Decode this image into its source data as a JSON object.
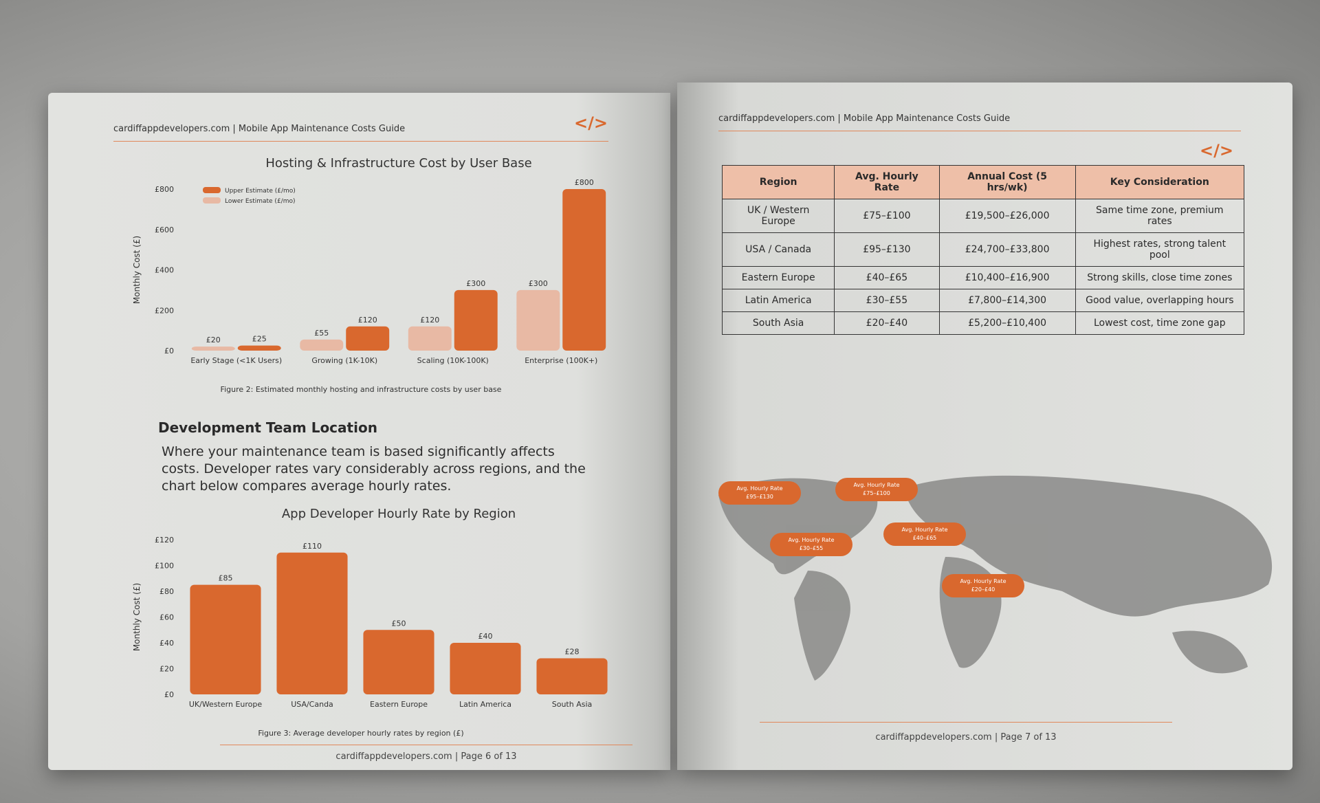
{
  "left_page": {
    "header": "cardiffappdevelopers.com | Mobile App Maintenance Costs Guide",
    "logo": "</>",
    "caption_1": "Figure 2: Estimated monthly hosting and infrastructure costs by user base",
    "heading": "Development Team Location",
    "paragraph": "Where your maintenance team is based significantly affects costs. Developer rates vary considerably across regions, and the chart below compares average hourly rates.",
    "caption_2": "Figure 3: Average developer hourly rates by region (£)",
    "footer": "cardiffappdevelopers.com | Page 6 of 13"
  },
  "chart_data": [
    {
      "type": "bar",
      "title": "Hosting & Infrastructure Cost by User Base",
      "y_label": "Monthly Cost (£)",
      "categories": [
        "Early Stage (<1K Users)",
        "Growing (1K-10K)",
        "Scaling (10K-100K)",
        "Enterprise (100K+)"
      ],
      "series": [
        {
          "name": "Lower Estimate (£/mo)",
          "color": "#e8b9a4",
          "values": [
            20,
            55,
            120,
            300
          ],
          "value_labels": [
            "£20",
            "£55",
            "£120",
            "£300"
          ]
        },
        {
          "name": "Upper Estimate (£/mo)",
          "color": "#d9682e",
          "values": [
            25,
            120,
            300,
            800
          ],
          "value_labels": [
            "£25",
            "£120",
            "£300",
            "£800"
          ]
        }
      ],
      "ylim": [
        0,
        800
      ],
      "yticks": [
        {
          "value": 0,
          "label": "£0"
        },
        {
          "value": 200,
          "label": "£200"
        },
        {
          "value": 400,
          "label": "£400"
        },
        {
          "value": 600,
          "label": "£600"
        },
        {
          "value": 800,
          "label": "£800"
        }
      ],
      "grid": false,
      "legend": "top-left"
    },
    {
      "type": "bar",
      "title": "App Developer Hourly Rate by Region",
      "y_label": "Monthly Cost (£)",
      "categories": [
        "UK/Western Europe",
        "USA/Canda",
        "Eastern Europe",
        "Latin America",
        "South Asia"
      ],
      "values": [
        85,
        110,
        50,
        40,
        28
      ],
      "value_labels": [
        "£85",
        "£110",
        "£50",
        "£40",
        "£28"
      ],
      "color": "#d9682e",
      "ylim": [
        0,
        120
      ],
      "yticks": [
        {
          "value": 0,
          "label": "£0"
        },
        {
          "value": 20,
          "label": "£20"
        },
        {
          "value": 40,
          "label": "£40"
        },
        {
          "value": 60,
          "label": "£60"
        },
        {
          "value": 80,
          "label": "£80"
        },
        {
          "value": 100,
          "label": "£100"
        },
        {
          "value": 120,
          "label": "£120"
        }
      ],
      "grid": false
    }
  ],
  "right_page": {
    "header": "cardiffappdevelopers.com | Mobile App Maintenance Costs Guide",
    "logo": "</>",
    "table": {
      "header": [
        "Region",
        "Avg. Hourly Rate",
        "Annual Cost (5 hrs/wk)",
        "Key Consideration"
      ],
      "rows": [
        [
          "UK / Western Europe",
          "£75–£100",
          "£19,500–£26,000",
          "Same time zone, premium rates"
        ],
        [
          "USA / Canada",
          "£95–£130",
          "£24,700–£33,800",
          "Highest rates, strong talent pool"
        ],
        [
          "Eastern Europe",
          "£40–£65",
          "£10,400–£16,900",
          "Strong skills, close time zones"
        ],
        [
          "Latin America",
          "£30–£55",
          "£7,800–£14,300",
          "Good value, overlapping hours"
        ],
        [
          "South Asia",
          "£20–£40",
          "£5,200–£10,400",
          "Lowest cost, time zone gap"
        ]
      ]
    },
    "map_labels": [
      {
        "title": "Avg. Hourly Rate",
        "value": "£95–£130"
      },
      {
        "title": "Avg. Hourly Rate",
        "value": "£75–£100"
      },
      {
        "title": "Avg. Hourly Rate",
        "value": "£40–£65"
      },
      {
        "title": "Avg. Hourly Rate",
        "value": "£30–£55"
      },
      {
        "title": "Avg. Hourly Rate",
        "value": "£20–£40"
      }
    ],
    "footer": "cardiffappdevelopers.com | Page 7 of 13"
  }
}
